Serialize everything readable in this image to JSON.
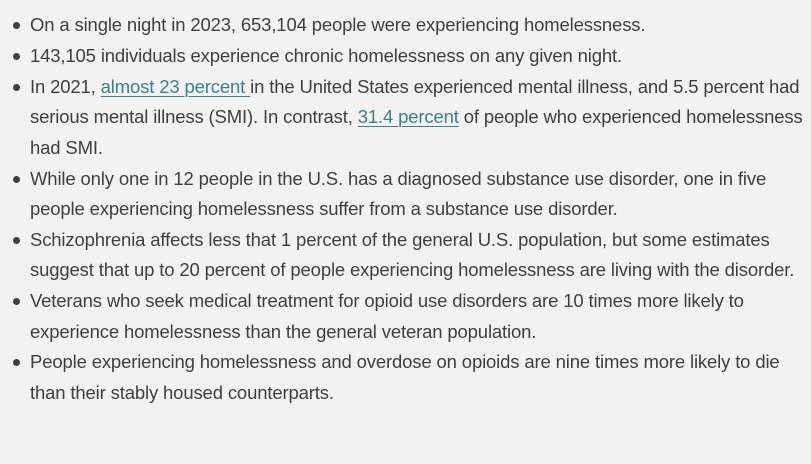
{
  "list": {
    "items": [
      {
        "text": "On a single night in 2023, 653,104 people were experiencing homelessness."
      },
      {
        "text": "143,105 individuals experience chronic homelessness on any given night."
      },
      {
        "before": "In 2021, ",
        "link1": "almost 23 percent ",
        "middle": "in the United States experienced mental illness, and 5.5 percent had serious mental illness (SMI). In contrast, ",
        "link2": "31.4 percent",
        "after": " of people who experienced homelessness had SMI."
      },
      {
        "text": "While only one in 12 people in the U.S. has a diagnosed substance use disorder, one in five people experiencing homelessness suffer from a substance use disorder."
      },
      {
        "text": "Schizophrenia affects less that 1 percent of the general U.S. population, but some estimates suggest that up to 20 percent of people experiencing homelessness are living with the disorder."
      },
      {
        "text": "Veterans who seek medical treatment for opioid use disorders are 10 times more likely to experience homelessness than the general veteran population."
      },
      {
        "text": "People experiencing homelessness and overdose on opioids are nine times more likely to die than their stably housed counterparts."
      }
    ]
  },
  "colors": {
    "background": "#f2f2f2",
    "text": "#3f3f3f",
    "link": "#3d7f8c"
  }
}
